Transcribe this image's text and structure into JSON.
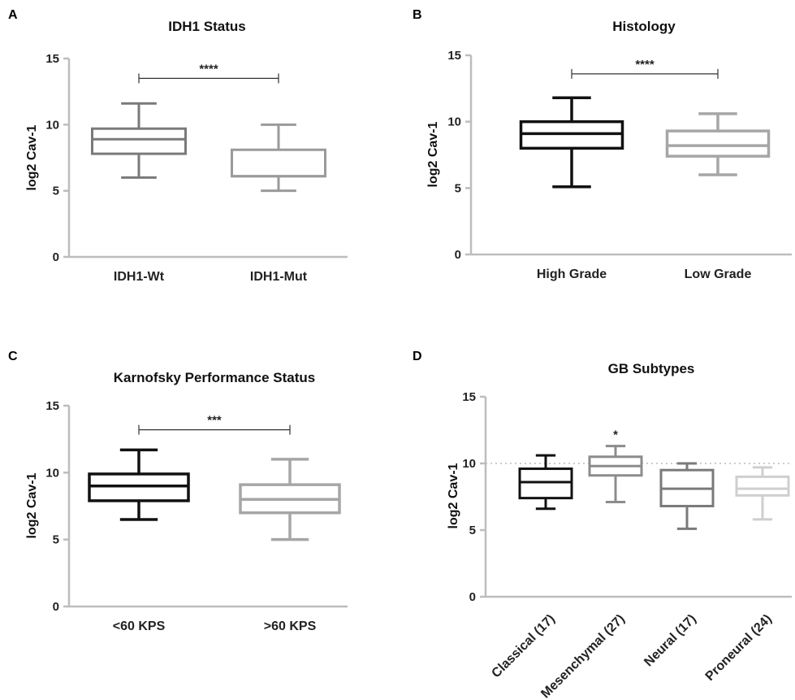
{
  "chart_data": [
    {
      "panel": "A",
      "type": "boxplot",
      "title": "IDH1 Status",
      "ylabel": "log2 Cav-1",
      "ylim": [
        0,
        15
      ],
      "yticks": [
        0,
        5,
        10,
        15
      ],
      "categories": [
        "IDH1-Wt",
        "IDH1-Mut"
      ],
      "boxes": [
        {
          "name": "IDH1-Wt",
          "min": 6.0,
          "q1": 7.8,
          "median": 8.9,
          "q3": 9.7,
          "max": 11.6,
          "color": "#7a7a7a"
        },
        {
          "name": "IDH1-Mut",
          "min": 5.0,
          "q1": 6.1,
          "median": 6.1,
          "q3": 8.1,
          "max": 10.0,
          "color": "#9a9a9a"
        }
      ],
      "significance": [
        {
          "from": 0,
          "to": 1,
          "label": "****",
          "y": 13.5
        }
      ],
      "reference_line": null
    },
    {
      "panel": "B",
      "type": "boxplot",
      "title": "Histology",
      "ylabel": "log2 Cav-1",
      "ylim": [
        0,
        15
      ],
      "yticks": [
        0,
        5,
        10,
        15
      ],
      "categories": [
        "High Grade",
        "Low Grade"
      ],
      "boxes": [
        {
          "name": "High Grade",
          "min": 5.1,
          "q1": 8.0,
          "median": 9.1,
          "q3": 10.0,
          "max": 11.8,
          "color": "#111111"
        },
        {
          "name": "Low Grade",
          "min": 6.0,
          "q1": 7.4,
          "median": 8.2,
          "q3": 9.3,
          "max": 10.6,
          "color": "#a6a6a6"
        }
      ],
      "significance": [
        {
          "from": 0,
          "to": 1,
          "label": "****",
          "y": 13.6
        }
      ],
      "reference_line": null
    },
    {
      "panel": "C",
      "type": "boxplot",
      "title": "Karnofsky Performance Status",
      "ylabel": "log2 Cav-1",
      "ylim": [
        0,
        15
      ],
      "yticks": [
        0,
        5,
        10,
        15
      ],
      "categories": [
        "<60 KPS",
        ">60 KPS"
      ],
      "boxes": [
        {
          "name": "<60 KPS",
          "min": 6.5,
          "q1": 7.9,
          "median": 9.0,
          "q3": 9.9,
          "max": 11.7,
          "color": "#111111"
        },
        {
          "name": ">60 KPS",
          "min": 5.0,
          "q1": 7.0,
          "median": 8.0,
          "q3": 9.1,
          "max": 11.0,
          "color": "#a6a6a6"
        }
      ],
      "significance": [
        {
          "from": 0,
          "to": 1,
          "label": "***",
          "y": 13.2
        }
      ],
      "reference_line": null
    },
    {
      "panel": "D",
      "type": "boxplot",
      "title": "GB    Subtypes",
      "ylabel": "log2 Cav-1",
      "ylim": [
        0,
        15
      ],
      "yticks": [
        0,
        5,
        10,
        15
      ],
      "categories": [
        "Classical (17)",
        "Mesenchymal (27)",
        "Neural (17)",
        "Proneural (24)"
      ],
      "boxes": [
        {
          "name": "Classical (17)",
          "min": 6.6,
          "q1": 7.4,
          "median": 8.6,
          "q3": 9.6,
          "max": 10.6,
          "color": "#111111"
        },
        {
          "name": "Mesenchymal (27)",
          "min": 7.1,
          "q1": 9.1,
          "median": 9.8,
          "q3": 10.5,
          "max": 11.3,
          "color": "#8c8c8c"
        },
        {
          "name": "Neural (17)",
          "min": 5.1,
          "q1": 6.8,
          "median": 8.1,
          "q3": 9.5,
          "max": 10.0,
          "color": "#7a7a7a"
        },
        {
          "name": "Proneural (24)",
          "min": 5.8,
          "q1": 7.6,
          "median": 8.1,
          "q3": 9.0,
          "max": 9.7,
          "color": "#cfcfcf"
        }
      ],
      "star": {
        "index": 1,
        "label": "*"
      },
      "significance": [],
      "reference_line": 10
    }
  ]
}
